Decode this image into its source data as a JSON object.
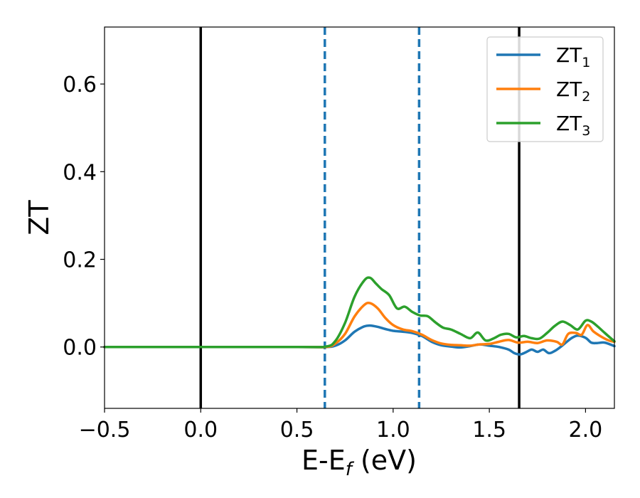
{
  "chart_data": {
    "type": "line",
    "xlabel": "E-E",
    "xlabel_sub": "f",
    "xlabel_unit": " (eV)",
    "ylabel": "ZT",
    "xlim": [
      -0.5,
      2.15
    ],
    "ylim": [
      -0.14,
      0.73
    ],
    "xticks": [
      -0.5,
      0.0,
      0.5,
      1.0,
      1.5,
      2.0
    ],
    "xtick_labels": [
      "−0.5",
      "0.0",
      "0.5",
      "1.0",
      "1.5",
      "2.0"
    ],
    "yticks": [
      0.0,
      0.2,
      0.4,
      0.6
    ],
    "ytick_labels": [
      "0.0",
      "0.2",
      "0.4",
      "0.6"
    ],
    "grid": false,
    "legend_position": "top-right",
    "vlines": [
      {
        "x": 0.0,
        "style": "solid",
        "color": "#000000"
      },
      {
        "x": 0.645,
        "style": "dashed",
        "color": "#1f77b4"
      },
      {
        "x": 1.135,
        "style": "dashed",
        "color": "#1f77b4"
      },
      {
        "x": 1.655,
        "style": "solid",
        "color": "#000000"
      }
    ],
    "series": [
      {
        "name": "ZT",
        "name_sub": "1",
        "color": "#1f77b4",
        "x": [
          -0.5,
          0.5,
          0.65,
          0.7,
          0.75,
          0.8,
          0.85,
          0.88,
          0.92,
          0.96,
          1.0,
          1.05,
          1.1,
          1.15,
          1.2,
          1.25,
          1.3,
          1.35,
          1.4,
          1.45,
          1.5,
          1.55,
          1.6,
          1.63,
          1.66,
          1.69,
          1.72,
          1.75,
          1.78,
          1.81,
          1.84,
          1.87,
          1.9,
          1.93,
          1.96,
          2.0,
          2.03,
          2.06,
          2.1,
          2.15
        ],
        "y": [
          0.0,
          0.0,
          0.0,
          0.003,
          0.015,
          0.035,
          0.047,
          0.049,
          0.046,
          0.041,
          0.037,
          0.035,
          0.032,
          0.025,
          0.012,
          0.004,
          0.001,
          -0.001,
          0.002,
          0.006,
          0.003,
          0.0,
          -0.006,
          -0.014,
          -0.017,
          -0.012,
          -0.006,
          -0.011,
          -0.006,
          -0.014,
          -0.009,
          0.0,
          0.011,
          0.021,
          0.026,
          0.021,
          0.01,
          0.009,
          0.01,
          0.002
        ]
      },
      {
        "name": "ZT",
        "name_sub": "2",
        "color": "#ff7f0e",
        "x": [
          -0.5,
          0.5,
          0.65,
          0.7,
          0.75,
          0.8,
          0.85,
          0.88,
          0.92,
          0.96,
          1.0,
          1.05,
          1.1,
          1.15,
          1.2,
          1.25,
          1.3,
          1.35,
          1.4,
          1.45,
          1.5,
          1.55,
          1.6,
          1.65,
          1.7,
          1.75,
          1.8,
          1.85,
          1.88,
          1.91,
          1.95,
          1.98,
          2.01,
          2.04,
          2.08,
          2.12,
          2.15
        ],
        "y": [
          0.0,
          0.0,
          0.0,
          0.008,
          0.03,
          0.07,
          0.096,
          0.1,
          0.088,
          0.066,
          0.05,
          0.04,
          0.036,
          0.028,
          0.016,
          0.008,
          0.005,
          0.004,
          0.003,
          0.006,
          0.007,
          0.012,
          0.016,
          0.01,
          0.012,
          0.009,
          0.015,
          0.012,
          0.006,
          0.03,
          0.032,
          0.028,
          0.05,
          0.036,
          0.024,
          0.015,
          0.012
        ]
      },
      {
        "name": "ZT",
        "name_sub": "3",
        "color": "#2ca02c",
        "x": [
          -0.5,
          0.5,
          0.65,
          0.7,
          0.75,
          0.8,
          0.85,
          0.88,
          0.91,
          0.94,
          0.98,
          1.02,
          1.06,
          1.1,
          1.14,
          1.18,
          1.22,
          1.26,
          1.3,
          1.35,
          1.4,
          1.44,
          1.48,
          1.52,
          1.56,
          1.6,
          1.64,
          1.68,
          1.72,
          1.76,
          1.8,
          1.84,
          1.88,
          1.92,
          1.96,
          2.0,
          2.03,
          2.06,
          2.1,
          2.15
        ],
        "y": [
          0.0,
          0.0,
          0.001,
          0.014,
          0.055,
          0.115,
          0.152,
          0.158,
          0.145,
          0.132,
          0.118,
          0.088,
          0.092,
          0.08,
          0.072,
          0.07,
          0.056,
          0.044,
          0.04,
          0.03,
          0.02,
          0.033,
          0.015,
          0.019,
          0.028,
          0.03,
          0.022,
          0.025,
          0.02,
          0.019,
          0.032,
          0.048,
          0.058,
          0.05,
          0.04,
          0.06,
          0.058,
          0.048,
          0.032,
          0.013
        ]
      }
    ]
  }
}
